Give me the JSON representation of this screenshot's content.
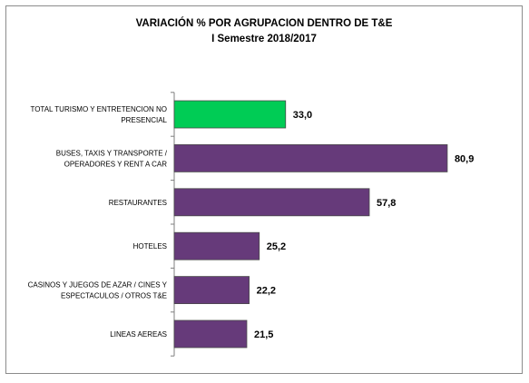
{
  "chart_data": {
    "type": "bar",
    "orientation": "horizontal",
    "title": "VARIACIÓN % POR AGRUPACION DENTRO DE T&E",
    "subtitle": "I Semestre 2018/2017",
    "categories": [
      [
        "TOTAL TURISMO Y ENTRETENCION  NO",
        "PRESENCIAL"
      ],
      [
        "BUSES, TAXIS Y TRANSPORTE /",
        "OPERADORES Y RENT A CAR"
      ],
      [
        "RESTAURANTES"
      ],
      [
        "HOTELES"
      ],
      [
        "CASINOS Y JUEGOS DE AZAR / CINES Y",
        "ESPECTACULOS / OTROS T&E"
      ],
      [
        "LINEAS AEREAS"
      ]
    ],
    "values": [
      33.0,
      80.9,
      57.8,
      25.2,
      22.2,
      21.5
    ],
    "value_labels": [
      "33,0",
      "80,9",
      "57,8",
      "25,2",
      "22,2",
      "21,5"
    ],
    "bar_colors": [
      "#00cc55",
      "#663a7a",
      "#663a7a",
      "#663a7a",
      "#663a7a",
      "#663a7a"
    ],
    "xlim": [
      0,
      90
    ],
    "grid": false,
    "legend": "none"
  }
}
